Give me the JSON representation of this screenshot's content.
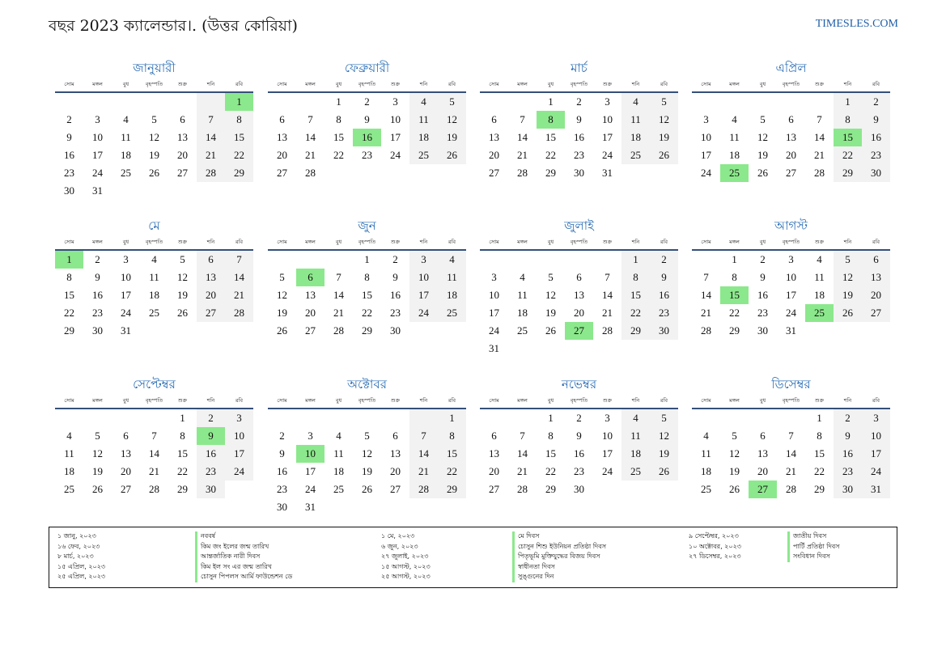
{
  "title": "বছর 2023 ক্যালেন্ডার।. (উত্তর কোরিয়া)",
  "brand": "TIMESLES.COM",
  "weekdays": [
    "সোম",
    "মঙ্গল",
    "বুধ",
    "বৃহস্পতি",
    "শুক্র",
    "শনি",
    "রবি"
  ],
  "colors": {
    "weekend": "#f2f2f2",
    "holiday": "#8ce88c",
    "month_title": "#2a6db5",
    "brand": "#1f5fa8"
  },
  "months": [
    {
      "name": "জানুয়ারী",
      "offset": 6,
      "days": 31,
      "holidays": [
        1
      ]
    },
    {
      "name": "ফেব্রুয়ারী",
      "offset": 2,
      "days": 28,
      "holidays": [
        16
      ]
    },
    {
      "name": "মার্চ",
      "offset": 2,
      "days": 31,
      "holidays": [
        8
      ]
    },
    {
      "name": "এপ্রিল",
      "offset": 5,
      "days": 30,
      "holidays": [
        15,
        25
      ]
    },
    {
      "name": "মে",
      "offset": 0,
      "days": 31,
      "holidays": [
        1
      ]
    },
    {
      "name": "জুন",
      "offset": 3,
      "days": 30,
      "holidays": [
        6
      ]
    },
    {
      "name": "জুলাই",
      "offset": 5,
      "days": 31,
      "holidays": [
        27
      ]
    },
    {
      "name": "আগস্ট",
      "offset": 1,
      "days": 31,
      "holidays": [
        15,
        25
      ]
    },
    {
      "name": "সেপ্টেম্বর",
      "offset": 4,
      "days": 30,
      "holidays": [
        9
      ]
    },
    {
      "name": "অক্টোবর",
      "offset": 6,
      "days": 31,
      "holidays": [
        10
      ]
    },
    {
      "name": "নভেম্বর",
      "offset": 2,
      "days": 30,
      "holidays": []
    },
    {
      "name": "ডিসেম্বর",
      "offset": 4,
      "days": 31,
      "holidays": [
        27
      ]
    }
  ],
  "holiday_columns": [
    {
      "dates": [
        "১ জানু, ২০২৩",
        "১৬ ফেব, ২০২৩",
        "৮ মার্চ, ২০২৩",
        "১৫ এপ্রিল, ২০২৩",
        "২৫ এপ্রিল, ২০২৩"
      ],
      "names": [
        "নববর্ষ",
        "কিম জং ইলের জন্ম তারিখ",
        "আন্তর্জাতিক নারী দিবস",
        "কিম ইল সং এর জন্ম তারিখ",
        "চোসুন পিপলস আর্মি ফাউন্ডেশন ডে"
      ]
    },
    {
      "dates": [
        "১ মে, ২০২৩",
        "৬ জুন, ২০২৩",
        "২৭ জুলাই, ২০২৩",
        "১৫ আগস্ট, ২০২৩",
        "২৫ আগস্ট, ২০২৩"
      ],
      "names": [
        "মে দিবস",
        "চোসুন শিশু ইউনিয়ন প্রতিষ্ঠা দিবস",
        "পিতৃভূমি মুক্তিযুদ্ধের বিজয় দিবস",
        "স্বাধীনতা দিবস",
        "সুঙ্গুনের দিন"
      ]
    },
    {
      "dates": [
        "৯ সেপ্টেম্বর, ২০২৩",
        "১০ অক্টোবর, ২০২৩",
        "২৭ ডিসেম্বর, ২০২৩"
      ],
      "names": [
        "জাতীয় দিবস",
        "পার্টি প্রতিষ্ঠা দিবস",
        "সংবিধান দিবস"
      ]
    }
  ]
}
